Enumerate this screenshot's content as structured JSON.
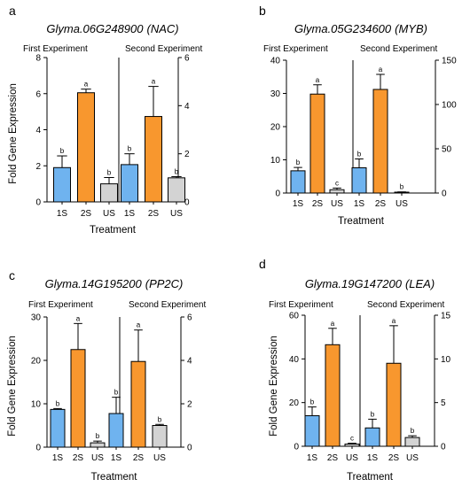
{
  "chart_data": [
    {
      "panel": "a",
      "type": "bar",
      "gene_italic": "Glyma.06G248900",
      "gene_family": "(NAC)",
      "experiments": [
        "First Experiment",
        "Second Experiment"
      ],
      "categories": [
        "1S",
        "2S",
        "US",
        "1S",
        "2S",
        "US"
      ],
      "colors": [
        "#6fb3ef",
        "#f8972e",
        "#d3d3d3",
        "#6fb3ef",
        "#f8972e",
        "#d3d3d3"
      ],
      "xlabel": "Treatment",
      "ylabel": "Fold Gene Expression",
      "left_axis": {
        "ylim": [
          0,
          8
        ],
        "ticks": [
          0,
          2,
          4,
          6,
          8
        ]
      },
      "right_axis": {
        "ylim": [
          0,
          6
        ],
        "ticks": [
          0,
          2,
          4,
          6
        ]
      },
      "first_experiment": {
        "values": [
          1.9,
          6.05,
          1.0
        ],
        "errors": [
          0.65,
          0.2,
          0.35
        ],
        "sig": [
          "b",
          "a",
          "b"
        ]
      },
      "second_experiment": {
        "values": [
          1.55,
          3.55,
          1.0
        ],
        "errors": [
          0.45,
          1.25,
          0.05
        ],
        "sig": [
          "b",
          "a",
          "b"
        ]
      }
    },
    {
      "panel": "b",
      "type": "bar",
      "gene_italic": "Glyma.05G234600",
      "gene_family": "(MYB)",
      "experiments": [
        "First Experiment",
        "Second Experiment"
      ],
      "categories": [
        "1S",
        "2S",
        "US",
        "1S",
        "2S",
        "US"
      ],
      "colors": [
        "#6fb3ef",
        "#f8972e",
        "#d3d3d3",
        "#6fb3ef",
        "#f8972e",
        "#d3d3d3"
      ],
      "xlabel": "Treatment",
      "ylabel": "",
      "left_axis": {
        "ylim": [
          0,
          40
        ],
        "ticks": [
          0,
          10,
          20,
          30,
          40
        ]
      },
      "right_axis": {
        "ylim": [
          0,
          150
        ],
        "ticks": [
          0,
          50,
          100,
          150
        ]
      },
      "first_experiment": {
        "values": [
          6.7,
          29.8,
          1.0
        ],
        "errors": [
          1.0,
          2.8,
          0.5
        ],
        "sig": [
          "b",
          "a",
          "c"
        ]
      },
      "second_experiment": {
        "values": [
          28.5,
          117,
          1.0
        ],
        "errors": [
          10,
          17,
          0.3
        ],
        "sig": [
          "b",
          "a",
          "b"
        ]
      }
    },
    {
      "panel": "c",
      "type": "bar",
      "gene_italic": "Glyma.14G195200",
      "gene_family": "(PP2C)",
      "experiments": [
        "First Experiment",
        "Second Experiment"
      ],
      "categories": [
        "1S",
        "2S",
        "US",
        "1S",
        "2S",
        "US"
      ],
      "colors": [
        "#6fb3ef",
        "#f8972e",
        "#d3d3d3",
        "#6fb3ef",
        "#f8972e",
        "#d3d3d3"
      ],
      "xlabel": "Treatment",
      "ylabel": "Fold Gene Expression",
      "left_axis": {
        "ylim": [
          0,
          30
        ],
        "ticks": [
          0,
          10,
          20,
          30
        ]
      },
      "right_axis": {
        "ylim": [
          0,
          6
        ],
        "ticks": [
          0,
          2,
          4,
          6
        ]
      },
      "first_experiment": {
        "values": [
          8.7,
          22.5,
          1.0
        ],
        "errors": [
          0.2,
          6.0,
          0.4
        ],
        "sig": [
          "b",
          "a",
          "b"
        ]
      },
      "second_experiment": {
        "values": [
          1.55,
          3.95,
          1.0
        ],
        "errors": [
          0.75,
          1.45,
          0.05
        ],
        "sig": [
          "b",
          "a",
          "b"
        ]
      }
    },
    {
      "panel": "d",
      "type": "bar",
      "gene_italic": "Glyma.19G147200",
      "gene_family": "(LEA)",
      "experiments": [
        "First Experiment",
        "Second Experiment"
      ],
      "categories": [
        "1S",
        "2S",
        "US",
        "1S",
        "2S",
        "US"
      ],
      "colors": [
        "#6fb3ef",
        "#f8972e",
        "#d3d3d3",
        "#6fb3ef",
        "#f8972e",
        "#d3d3d3"
      ],
      "xlabel": "Treatment",
      "ylabel": "Fold Gene Expression",
      "left_axis": {
        "ylim": [
          0,
          60
        ],
        "ticks": [
          0,
          20,
          40,
          60
        ]
      },
      "right_axis": {
        "ylim": [
          0,
          15
        ],
        "ticks": [
          0,
          5,
          10,
          15
        ]
      },
      "first_experiment": {
        "values": [
          14,
          46.5,
          1.0
        ],
        "errors": [
          4.0,
          7.5,
          0.4
        ],
        "sig": [
          "b",
          "a",
          "c"
        ]
      },
      "second_experiment": {
        "values": [
          2.1,
          9.5,
          1.0
        ],
        "errors": [
          1.0,
          4.3,
          0.2
        ],
        "sig": [
          "b",
          "a",
          "b"
        ]
      }
    }
  ]
}
